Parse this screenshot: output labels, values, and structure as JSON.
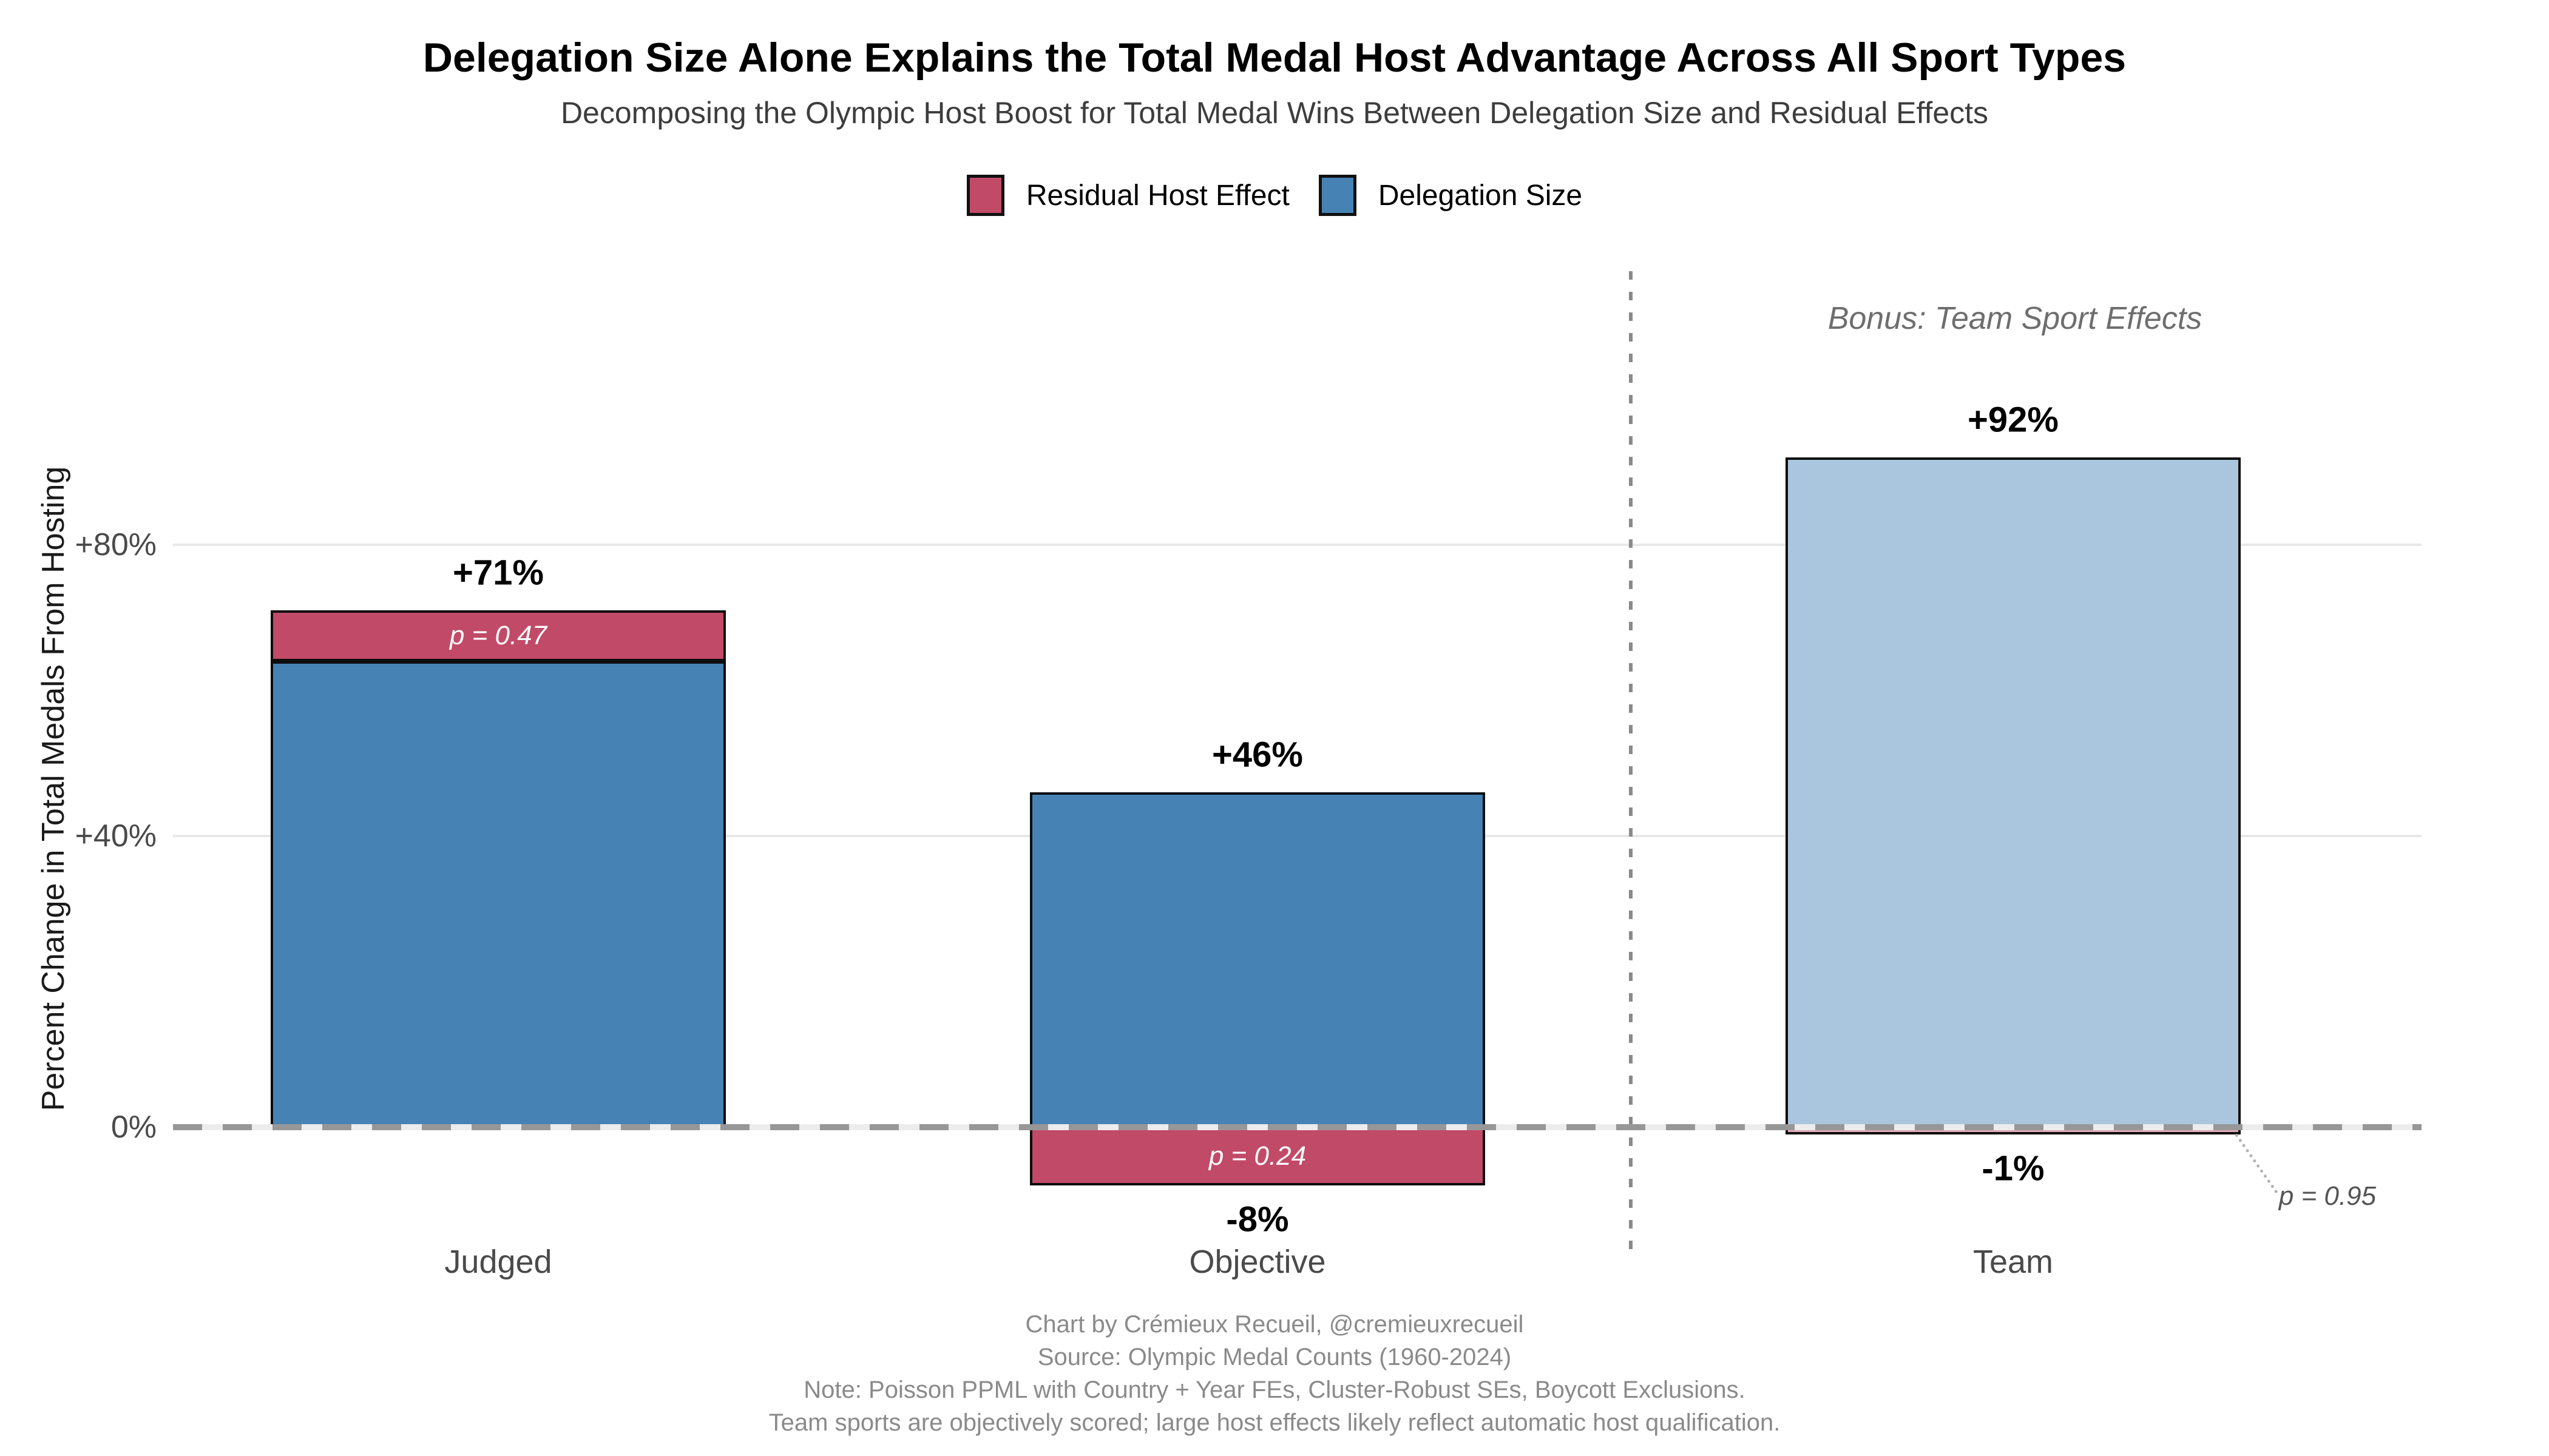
{
  "title": "Delegation Size Alone Explains the Total Medal Host Advantage Across All Sport Types",
  "subtitle": "Decomposing the Olympic Host Boost for Total Medal Wins Between Delegation Size and Residual Effects",
  "legend": {
    "items": [
      {
        "label": "Residual Host Effect",
        "color": "#C14A68"
      },
      {
        "label": "Delegation Size",
        "color": "#4682B4"
      }
    ]
  },
  "y_axis": {
    "title": "Percent Change in Total Medals From Hosting",
    "ticks": [
      {
        "label": "+80%",
        "pct": 80
      },
      {
        "label": "+40%",
        "pct": 40
      },
      {
        "label": "0%",
        "pct": 0
      }
    ]
  },
  "bonus_annotation": "Bonus: Team Sport Effects",
  "colors": {
    "delegation": "#4682B4",
    "delegation_faded": "#A9C6DE",
    "residual": "#C14A68",
    "residual_faded": "#DFA9B8",
    "grid": "#E8E8E8",
    "zero_dash": "#979797",
    "divider": "#8A8A8A"
  },
  "chart_data": {
    "type": "bar",
    "stacked": true,
    "title": "Delegation Size Alone Explains the Total Medal Host Advantage Across All Sport Types",
    "subtitle": "Decomposing the Olympic Host Boost for Total Medal Wins Between Delegation Size and Residual Effects",
    "categories": [
      "Judged",
      "Objective",
      "Team"
    ],
    "series": [
      {
        "name": "Delegation Size",
        "color": "#4682B4",
        "values": [
          64,
          46,
          92
        ]
      },
      {
        "name": "Residual Host Effect",
        "color": "#C14A68",
        "values": [
          7,
          -8,
          -1
        ]
      }
    ],
    "net_labels": [
      "+71%",
      "+46%",
      "+92%"
    ],
    "negative_labels": [
      null,
      "-8%",
      "-1%"
    ],
    "p_values": [
      "p = 0.47",
      "p = 0.24",
      "p = 0.95"
    ],
    "faded_bars": [
      false,
      false,
      true
    ],
    "ylabel": "Percent Change in Total Medals From Hosting",
    "yticks": [
      "0%",
      "+40%",
      "+80%"
    ],
    "ylim": [
      -16,
      105
    ],
    "grid": "horizontal",
    "zero_line": "dashed",
    "legend_position": "top",
    "annotations": [
      "Bonus: Team Sport Effects"
    ],
    "bonus_panel_categories": [
      "Team"
    ]
  },
  "footer": {
    "lines": [
      "Chart by Crémieux Recueil, @cremieuxrecueil",
      "Source: Olympic Medal Counts (1960-2024)",
      "Note: Poisson PPML with Country + Year FEs, Cluster-Robust SEs, Boycott Exclusions.",
      "Team sports are objectively scored; large host effects likely reflect automatic host qualification."
    ]
  }
}
